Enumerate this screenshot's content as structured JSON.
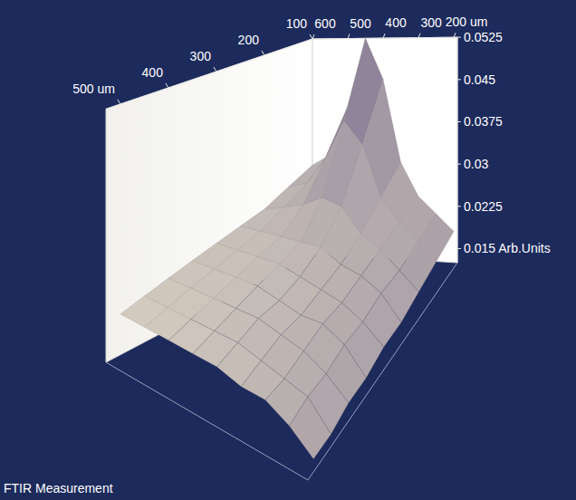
{
  "chart_data": {
    "type": "surface",
    "title": "FTIR Measurement",
    "x": [
      100,
      150,
      200,
      250,
      300,
      350,
      400,
      450,
      500
    ],
    "y": [
      200,
      250,
      300,
      350,
      400,
      450,
      500,
      550,
      600
    ],
    "values": [
      [
        0.018,
        0.021,
        0.024,
        0.03,
        0.045,
        0.0525,
        0.04,
        0.031,
        0.029
      ],
      [
        0.017,
        0.02,
        0.023,
        0.027,
        0.036,
        0.04,
        0.033,
        0.028,
        0.027
      ],
      [
        0.016,
        0.019,
        0.022,
        0.024,
        0.028,
        0.029,
        0.027,
        0.026,
        0.025
      ],
      [
        0.015,
        0.019,
        0.021,
        0.022,
        0.024,
        0.024,
        0.024,
        0.024,
        0.024
      ],
      [
        0.015,
        0.018,
        0.02,
        0.021,
        0.022,
        0.023,
        0.023,
        0.023,
        0.023
      ],
      [
        0.014,
        0.018,
        0.02,
        0.02,
        0.021,
        0.022,
        0.022,
        0.022,
        0.022
      ],
      [
        0.014,
        0.017,
        0.019,
        0.02,
        0.021,
        0.021,
        0.021,
        0.021,
        0.021
      ],
      [
        0.013,
        0.017,
        0.018,
        0.019,
        0.02,
        0.02,
        0.02,
        0.02,
        0.02
      ],
      [
        0.013,
        0.016,
        0.018,
        0.018,
        0.019,
        0.019,
        0.019,
        0.019,
        0.019
      ]
    ],
    "xlim": [
      100,
      530
    ],
    "ylim": [
      600,
      190
    ],
    "zlim": [
      0.0125,
      0.0525
    ],
    "xticks": [
      {
        "value": 500,
        "label": "500 um"
      },
      400,
      300,
      200,
      100
    ],
    "yticks": [
      600,
      500,
      400,
      300,
      {
        "value": 200,
        "label": "200 um"
      }
    ],
    "zticks": [
      0.0525,
      0.045,
      0.0375,
      0.03,
      0.0225,
      {
        "value": 0.015,
        "label": "0.015 Arb.Units"
      }
    ]
  }
}
